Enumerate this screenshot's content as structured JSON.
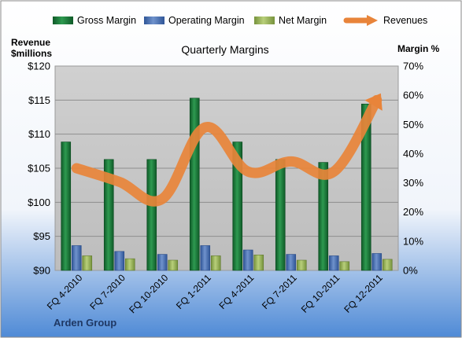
{
  "chart_data": {
    "type": "bar",
    "title": "Quarterly Margins",
    "company": "Arden Group",
    "left_axis_label": [
      "Revenue",
      "$millions"
    ],
    "right_axis_label": "Margin %",
    "categories": [
      "FQ 4-2010",
      "FQ 7-2010",
      "FQ 10-2010",
      "FQ 1-2011",
      "FQ 4-2011",
      "FQ 7-2011",
      "FQ 10-2011",
      "FQ 12-2011"
    ],
    "left_axis": {
      "min": 90,
      "max": 120,
      "step": 5,
      "ticks": [
        "$90",
        "$95",
        "$100",
        "$105",
        "$110",
        "$115",
        "$120"
      ]
    },
    "right_axis": {
      "min": 0,
      "max": 70,
      "step": 10,
      "ticks": [
        "0%",
        "10%",
        "20%",
        "30%",
        "40%",
        "50%",
        "60%",
        "70%"
      ]
    },
    "series": [
      {
        "name": "Gross Margin",
        "kind": "bar",
        "axis": "right",
        "color": "#1f7a3c",
        "values": [
          44,
          38,
          38,
          59,
          44,
          38,
          37,
          57
        ]
      },
      {
        "name": "Operating Margin",
        "kind": "bar",
        "axis": "right",
        "color": "#4b72b0",
        "values": [
          8.5,
          6.5,
          5.5,
          8.5,
          7,
          5.5,
          5,
          5.8
        ]
      },
      {
        "name": "Net Margin",
        "kind": "bar",
        "axis": "right",
        "color": "#9bbb59",
        "values": [
          5,
          4,
          3.5,
          5,
          5.3,
          3.5,
          3,
          3.8
        ]
      },
      {
        "name": "Revenues",
        "kind": "line",
        "axis": "left",
        "color": "#e8843a",
        "values": [
          105,
          103,
          100.5,
          111,
          104.5,
          106,
          104.5,
          115
        ]
      }
    ],
    "grid": true,
    "legend": "top",
    "plot_background": "#c8c8c8",
    "page_gradient": [
      "#ffffff",
      "#4f8ad6"
    ]
  }
}
